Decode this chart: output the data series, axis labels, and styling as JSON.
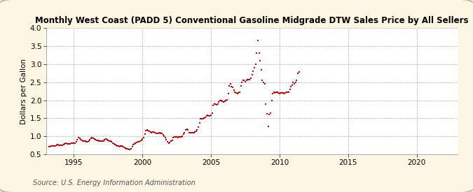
{
  "title": "Monthly West Coast (PADD 5) Conventional Gasoline Midgrade DTW Sales Price by All Sellers",
  "ylabel": "Dollars per Gallon",
  "source": "Source: U.S. Energy Information Administration",
  "background_color": "#fdf6e3",
  "plot_background_color": "#ffffff",
  "marker_color": "#cc0000",
  "marker": "s",
  "marker_size": 4,
  "xlim": [
    1993.0,
    2023.0
  ],
  "ylim": [
    0.5,
    4.0
  ],
  "yticks": [
    0.5,
    1.0,
    1.5,
    2.0,
    2.5,
    3.0,
    3.5,
    4.0
  ],
  "xticks": [
    1995,
    2000,
    2005,
    2010,
    2015,
    2020
  ],
  "data": [
    [
      1993.17,
      0.72
    ],
    [
      1993.25,
      0.72
    ],
    [
      1993.33,
      0.73
    ],
    [
      1993.42,
      0.74
    ],
    [
      1993.5,
      0.73
    ],
    [
      1993.58,
      0.73
    ],
    [
      1993.67,
      0.74
    ],
    [
      1993.75,
      0.76
    ],
    [
      1993.83,
      0.77
    ],
    [
      1993.92,
      0.76
    ],
    [
      1994.0,
      0.76
    ],
    [
      1994.08,
      0.75
    ],
    [
      1994.17,
      0.76
    ],
    [
      1994.25,
      0.77
    ],
    [
      1994.33,
      0.8
    ],
    [
      1994.42,
      0.82
    ],
    [
      1994.5,
      0.8
    ],
    [
      1994.58,
      0.8
    ],
    [
      1994.67,
      0.79
    ],
    [
      1994.75,
      0.8
    ],
    [
      1994.83,
      0.82
    ],
    [
      1994.92,
      0.82
    ],
    [
      1995.0,
      0.82
    ],
    [
      1995.08,
      0.82
    ],
    [
      1995.17,
      0.85
    ],
    [
      1995.25,
      0.91
    ],
    [
      1995.33,
      0.96
    ],
    [
      1995.42,
      0.95
    ],
    [
      1995.5,
      0.91
    ],
    [
      1995.58,
      0.89
    ],
    [
      1995.67,
      0.87
    ],
    [
      1995.75,
      0.87
    ],
    [
      1995.83,
      0.86
    ],
    [
      1995.92,
      0.85
    ],
    [
      1996.0,
      0.84
    ],
    [
      1996.08,
      0.87
    ],
    [
      1996.17,
      0.91
    ],
    [
      1996.25,
      0.95
    ],
    [
      1996.33,
      0.96
    ],
    [
      1996.42,
      0.94
    ],
    [
      1996.5,
      0.92
    ],
    [
      1996.58,
      0.9
    ],
    [
      1996.67,
      0.88
    ],
    [
      1996.75,
      0.88
    ],
    [
      1996.83,
      0.87
    ],
    [
      1996.92,
      0.86
    ],
    [
      1997.0,
      0.86
    ],
    [
      1997.08,
      0.87
    ],
    [
      1997.17,
      0.87
    ],
    [
      1997.25,
      0.9
    ],
    [
      1997.33,
      0.92
    ],
    [
      1997.42,
      0.91
    ],
    [
      1997.5,
      0.88
    ],
    [
      1997.58,
      0.87
    ],
    [
      1997.67,
      0.86
    ],
    [
      1997.75,
      0.84
    ],
    [
      1997.83,
      0.82
    ],
    [
      1997.92,
      0.8
    ],
    [
      1998.0,
      0.78
    ],
    [
      1998.08,
      0.76
    ],
    [
      1998.17,
      0.74
    ],
    [
      1998.25,
      0.73
    ],
    [
      1998.33,
      0.72
    ],
    [
      1998.42,
      0.73
    ],
    [
      1998.5,
      0.73
    ],
    [
      1998.58,
      0.71
    ],
    [
      1998.67,
      0.69
    ],
    [
      1998.75,
      0.67
    ],
    [
      1998.83,
      0.66
    ],
    [
      1998.92,
      0.65
    ],
    [
      1999.0,
      0.64
    ],
    [
      1999.08,
      0.64
    ],
    [
      1999.17,
      0.65
    ],
    [
      1999.25,
      0.71
    ],
    [
      1999.33,
      0.77
    ],
    [
      1999.42,
      0.8
    ],
    [
      1999.5,
      0.81
    ],
    [
      1999.58,
      0.83
    ],
    [
      1999.67,
      0.84
    ],
    [
      1999.75,
      0.85
    ],
    [
      1999.83,
      0.87
    ],
    [
      1999.92,
      0.89
    ],
    [
      2000.0,
      0.93
    ],
    [
      2000.08,
      0.97
    ],
    [
      2000.17,
      1.07
    ],
    [
      2000.25,
      1.15
    ],
    [
      2000.33,
      1.17
    ],
    [
      2000.42,
      1.16
    ],
    [
      2000.5,
      1.14
    ],
    [
      2000.58,
      1.12
    ],
    [
      2000.67,
      1.11
    ],
    [
      2000.75,
      1.12
    ],
    [
      2000.83,
      1.12
    ],
    [
      2000.92,
      1.11
    ],
    [
      2001.0,
      1.08
    ],
    [
      2001.08,
      1.09
    ],
    [
      2001.17,
      1.09
    ],
    [
      2001.25,
      1.11
    ],
    [
      2001.33,
      1.09
    ],
    [
      2001.42,
      1.08
    ],
    [
      2001.5,
      1.04
    ],
    [
      2001.58,
      1.0
    ],
    [
      2001.67,
      0.96
    ],
    [
      2001.75,
      0.9
    ],
    [
      2001.83,
      0.85
    ],
    [
      2001.92,
      0.82
    ],
    [
      2002.0,
      0.83
    ],
    [
      2002.08,
      0.87
    ],
    [
      2002.17,
      0.89
    ],
    [
      2002.25,
      0.96
    ],
    [
      2002.33,
      0.98
    ],
    [
      2002.42,
      0.99
    ],
    [
      2002.5,
      0.98
    ],
    [
      2002.58,
      0.97
    ],
    [
      2002.67,
      0.98
    ],
    [
      2002.75,
      0.99
    ],
    [
      2002.83,
      0.99
    ],
    [
      2002.92,
      1.01
    ],
    [
      2003.0,
      1.06
    ],
    [
      2003.08,
      1.11
    ],
    [
      2003.17,
      1.17
    ],
    [
      2003.25,
      1.2
    ],
    [
      2003.33,
      1.18
    ],
    [
      2003.42,
      1.11
    ],
    [
      2003.5,
      1.1
    ],
    [
      2003.58,
      1.11
    ],
    [
      2003.67,
      1.11
    ],
    [
      2003.75,
      1.11
    ],
    [
      2003.83,
      1.12
    ],
    [
      2003.92,
      1.14
    ],
    [
      2004.0,
      1.18
    ],
    [
      2004.08,
      1.25
    ],
    [
      2004.17,
      1.38
    ],
    [
      2004.25,
      1.48
    ],
    [
      2004.33,
      1.49
    ],
    [
      2004.42,
      1.48
    ],
    [
      2004.5,
      1.5
    ],
    [
      2004.58,
      1.53
    ],
    [
      2004.67,
      1.56
    ],
    [
      2004.75,
      1.58
    ],
    [
      2004.83,
      1.57
    ],
    [
      2004.92,
      1.56
    ],
    [
      2005.0,
      1.58
    ],
    [
      2005.08,
      1.65
    ],
    [
      2005.17,
      1.85
    ],
    [
      2005.25,
      1.9
    ],
    [
      2005.33,
      1.89
    ],
    [
      2005.42,
      1.88
    ],
    [
      2005.5,
      1.89
    ],
    [
      2005.58,
      1.95
    ],
    [
      2005.67,
      2.0
    ],
    [
      2005.75,
      1.99
    ],
    [
      2005.83,
      1.98
    ],
    [
      2005.92,
      1.96
    ],
    [
      2006.0,
      1.97
    ],
    [
      2006.08,
      1.99
    ],
    [
      2006.17,
      2.01
    ],
    [
      2006.25,
      2.18
    ],
    [
      2006.33,
      2.4
    ],
    [
      2006.42,
      2.45
    ],
    [
      2006.5,
      2.38
    ],
    [
      2006.58,
      2.35
    ],
    [
      2006.67,
      2.28
    ],
    [
      2006.75,
      2.22
    ],
    [
      2006.83,
      2.2
    ],
    [
      2006.92,
      2.18
    ],
    [
      2007.0,
      2.2
    ],
    [
      2007.08,
      2.22
    ],
    [
      2007.17,
      2.4
    ],
    [
      2007.25,
      2.5
    ],
    [
      2007.33,
      2.55
    ],
    [
      2007.42,
      2.55
    ],
    [
      2007.5,
      2.52
    ],
    [
      2007.58,
      2.55
    ],
    [
      2007.67,
      2.58
    ],
    [
      2007.75,
      2.58
    ],
    [
      2007.83,
      2.58
    ],
    [
      2007.92,
      2.62
    ],
    [
      2008.0,
      2.7
    ],
    [
      2008.08,
      2.8
    ],
    [
      2008.17,
      2.9
    ],
    [
      2008.25,
      3.0
    ],
    [
      2008.33,
      3.3
    ],
    [
      2008.42,
      3.65
    ],
    [
      2008.5,
      3.3
    ],
    [
      2008.58,
      3.1
    ],
    [
      2008.67,
      2.85
    ],
    [
      2008.75,
      2.55
    ],
    [
      2008.83,
      2.5
    ],
    [
      2008.92,
      2.45
    ],
    [
      2009.0,
      1.9
    ],
    [
      2009.08,
      1.62
    ],
    [
      2009.17,
      1.28
    ],
    [
      2009.25,
      1.6
    ],
    [
      2009.33,
      1.65
    ],
    [
      2009.42,
      2.0
    ],
    [
      2009.5,
      2.18
    ],
    [
      2009.58,
      2.22
    ],
    [
      2009.67,
      2.2
    ],
    [
      2009.75,
      2.22
    ],
    [
      2009.83,
      2.22
    ],
    [
      2009.92,
      2.2
    ],
    [
      2010.0,
      2.18
    ],
    [
      2010.08,
      2.2
    ],
    [
      2010.17,
      2.2
    ],
    [
      2010.25,
      2.2
    ],
    [
      2010.33,
      2.18
    ],
    [
      2010.42,
      2.2
    ],
    [
      2010.5,
      2.22
    ],
    [
      2010.58,
      2.22
    ],
    [
      2010.67,
      2.22
    ],
    [
      2010.75,
      2.3
    ],
    [
      2010.83,
      2.38
    ],
    [
      2010.92,
      2.42
    ],
    [
      2011.0,
      2.5
    ],
    [
      2011.08,
      2.45
    ],
    [
      2011.17,
      2.5
    ],
    [
      2011.25,
      2.55
    ],
    [
      2011.33,
      2.75
    ],
    [
      2011.42,
      2.78
    ]
  ]
}
